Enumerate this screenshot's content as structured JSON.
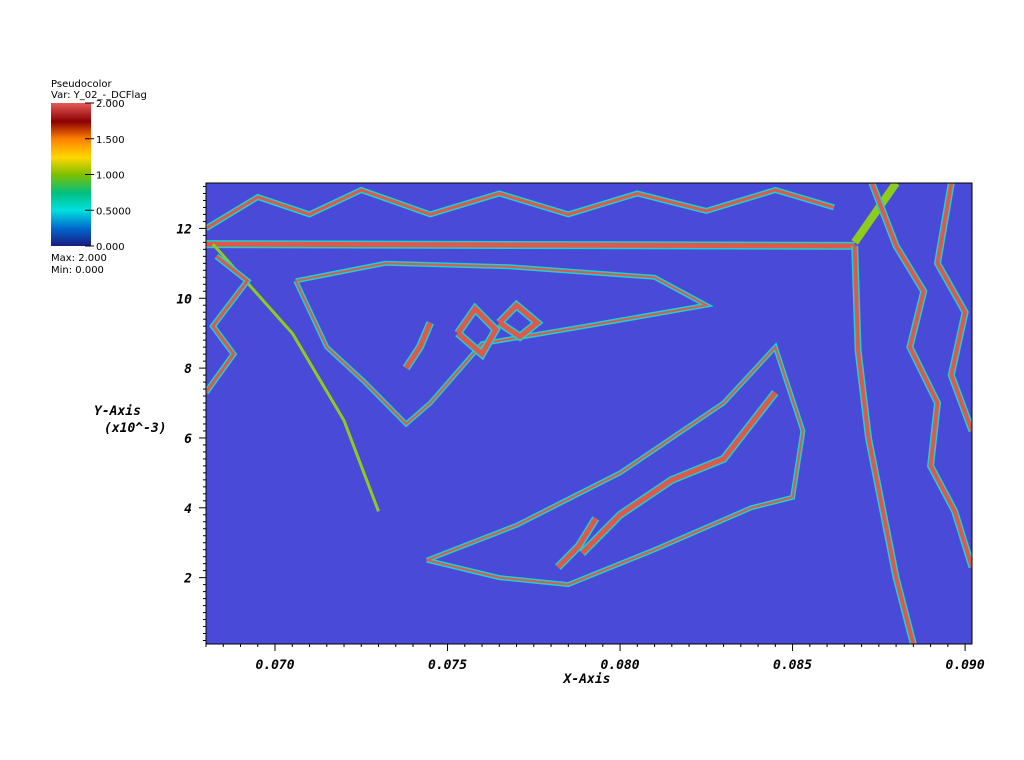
{
  "legend": {
    "title_line1": "Pseudocolor",
    "title_line2": "Var: Y_02_-_DCFlag",
    "max_label": "Max:  2.000",
    "min_label": "Min:  0.000",
    "ticks": [
      {
        "value": 2.0,
        "label": "2.000"
      },
      {
        "value": 1.5,
        "label": "1.500"
      },
      {
        "value": 1.0,
        "label": "1.000"
      },
      {
        "value": 0.5,
        "label": "0.5000"
      },
      {
        "value": 0.0,
        "label": "0.000"
      }
    ]
  },
  "colors": {
    "background_field": "#4a4ad8",
    "cyan_band": "#19d2d2",
    "red_band": "#e0584a",
    "green_band": "#8ccc1e",
    "colormap": [
      "#e65a5a",
      "#8b0000",
      "#ff7f00",
      "#ffd700",
      "#7fc000",
      "#00c080",
      "#00e0e0",
      "#0066cc",
      "#1a1a80"
    ]
  },
  "chart_data": {
    "type": "heatmap",
    "title": "",
    "xlabel": "X-Axis",
    "ylabel": "Y-Axis",
    "ylabel_scale": "(x10^-3)",
    "xlim": [
      0.068,
      0.0902
    ],
    "ylim": [
      0.1,
      13.3
    ],
    "x_ticks": [
      {
        "value": 0.07,
        "label": "0.070"
      },
      {
        "value": 0.075,
        "label": "0.075"
      },
      {
        "value": 0.08,
        "label": "0.080"
      },
      {
        "value": 0.085,
        "label": "0.085"
      },
      {
        "value": 0.09,
        "label": "0.090"
      }
    ],
    "y_ticks": [
      {
        "value": 2,
        "label": "2"
      },
      {
        "value": 4,
        "label": "4"
      },
      {
        "value": 6,
        "label": "6"
      },
      {
        "value": 8,
        "label": "8"
      },
      {
        "value": 10,
        "label": "10"
      },
      {
        "value": 12,
        "label": "12"
      }
    ],
    "value_range": [
      0.0,
      2.0
    ],
    "background_value": 0.25,
    "bands": [
      {
        "name": "top-shock",
        "value": 2.0,
        "width": 5,
        "points": [
          [
            0.068,
            11.55
          ],
          [
            0.0868,
            11.5
          ]
        ]
      },
      {
        "name": "left-oblique-shock",
        "value": 1.1,
        "width": 3,
        "points": [
          [
            0.0682,
            11.55
          ],
          [
            0.0705,
            9.0
          ],
          [
            0.072,
            6.5
          ],
          [
            0.073,
            3.9
          ]
        ]
      },
      {
        "name": "right-curved-shock",
        "value": 2.0,
        "width": 4,
        "points": [
          [
            0.0868,
            11.5
          ],
          [
            0.0869,
            8.5
          ],
          [
            0.0872,
            6.0
          ],
          [
            0.0876,
            4.0
          ],
          [
            0.088,
            2.0
          ],
          [
            0.0885,
            0.1
          ]
        ]
      },
      {
        "name": "top-right-jet",
        "value": 1.1,
        "width": 8,
        "points": [
          [
            0.0868,
            11.6
          ],
          [
            0.088,
            13.3
          ]
        ]
      },
      {
        "name": "upper-triangle-contour",
        "value": 2.0,
        "width": 2,
        "points": [
          [
            0.0706,
            10.5
          ],
          [
            0.0732,
            11.0
          ],
          [
            0.0768,
            10.9
          ],
          [
            0.081,
            10.6
          ],
          [
            0.0825,
            9.8
          ],
          [
            0.079,
            9.2
          ],
          [
            0.076,
            8.7
          ],
          [
            0.0745,
            7.0
          ],
          [
            0.0738,
            6.4
          ],
          [
            0.0726,
            7.6
          ],
          [
            0.0715,
            8.6
          ],
          [
            0.0706,
            10.5
          ]
        ]
      },
      {
        "name": "inner-island-a",
        "value": 2.0,
        "width": 5,
        "points": [
          [
            0.0738,
            8.0
          ],
          [
            0.0742,
            8.6
          ],
          [
            0.0745,
            9.3
          ],
          [
            0.0742,
            8.6
          ],
          [
            0.0738,
            8.0
          ]
        ]
      },
      {
        "name": "inner-island-b",
        "value": 2.0,
        "width": 5,
        "points": [
          [
            0.0753,
            9.0
          ],
          [
            0.0758,
            9.7
          ],
          [
            0.0764,
            9.1
          ],
          [
            0.076,
            8.4
          ],
          [
            0.0753,
            9.0
          ]
        ]
      },
      {
        "name": "inner-island-c",
        "value": 2.0,
        "width": 5,
        "points": [
          [
            0.0765,
            9.3
          ],
          [
            0.077,
            9.8
          ],
          [
            0.0776,
            9.3
          ],
          [
            0.0771,
            8.9
          ],
          [
            0.0765,
            9.3
          ]
        ]
      },
      {
        "name": "lower-diagonal-contour",
        "value": 2.0,
        "width": 2,
        "points": [
          [
            0.0744,
            2.5
          ],
          [
            0.077,
            3.5
          ],
          [
            0.08,
            5.0
          ],
          [
            0.083,
            7.0
          ],
          [
            0.0845,
            8.6
          ],
          [
            0.0853,
            6.2
          ],
          [
            0.085,
            4.3
          ],
          [
            0.0838,
            4.0
          ],
          [
            0.081,
            2.8
          ],
          [
            0.0785,
            1.8
          ],
          [
            0.0765,
            2.0
          ],
          [
            0.0744,
            2.5
          ]
        ]
      },
      {
        "name": "inner-diagonal-ridge",
        "value": 2.0,
        "width": 5,
        "points": [
          [
            0.0789,
            2.7
          ],
          [
            0.08,
            3.8
          ],
          [
            0.0815,
            4.8
          ],
          [
            0.083,
            5.4
          ],
          [
            0.0845,
            7.3
          ]
        ]
      },
      {
        "name": "inner-diagonal-ridge-b",
        "value": 2.0,
        "width": 5,
        "points": [
          [
            0.0782,
            2.3
          ],
          [
            0.0788,
            2.9
          ],
          [
            0.0793,
            3.7
          ]
        ]
      },
      {
        "name": "right-staircase-1",
        "value": 2.0,
        "width": 4,
        "points": [
          [
            0.0873,
            13.3
          ],
          [
            0.088,
            11.5
          ],
          [
            0.0888,
            10.2
          ],
          [
            0.0884,
            8.6
          ],
          [
            0.0892,
            7.0
          ],
          [
            0.089,
            5.2
          ],
          [
            0.0897,
            3.9
          ],
          [
            0.0902,
            2.3
          ]
        ]
      },
      {
        "name": "right-staircase-2",
        "value": 2.0,
        "width": 4,
        "points": [
          [
            0.0896,
            13.3
          ],
          [
            0.0892,
            11.0
          ],
          [
            0.09,
            9.6
          ],
          [
            0.0896,
            7.8
          ],
          [
            0.0902,
            6.2
          ]
        ]
      },
      {
        "name": "top-staircase",
        "value": 2.0,
        "width": 3,
        "points": [
          [
            0.068,
            12.0
          ],
          [
            0.0695,
            12.9
          ],
          [
            0.071,
            12.4
          ],
          [
            0.0725,
            13.1
          ],
          [
            0.0745,
            12.4
          ],
          [
            0.0765,
            13.0
          ],
          [
            0.0785,
            12.4
          ],
          [
            0.0805,
            13.0
          ],
          [
            0.0825,
            12.5
          ],
          [
            0.0845,
            13.1
          ],
          [
            0.0862,
            12.6
          ]
        ]
      },
      {
        "name": "left-upper-staircase",
        "value": 2.0,
        "width": 3,
        "points": [
          [
            0.068,
            7.3
          ],
          [
            0.0688,
            8.4
          ],
          [
            0.0682,
            9.2
          ],
          [
            0.0692,
            10.5
          ],
          [
            0.0683,
            11.2
          ]
        ]
      }
    ]
  }
}
